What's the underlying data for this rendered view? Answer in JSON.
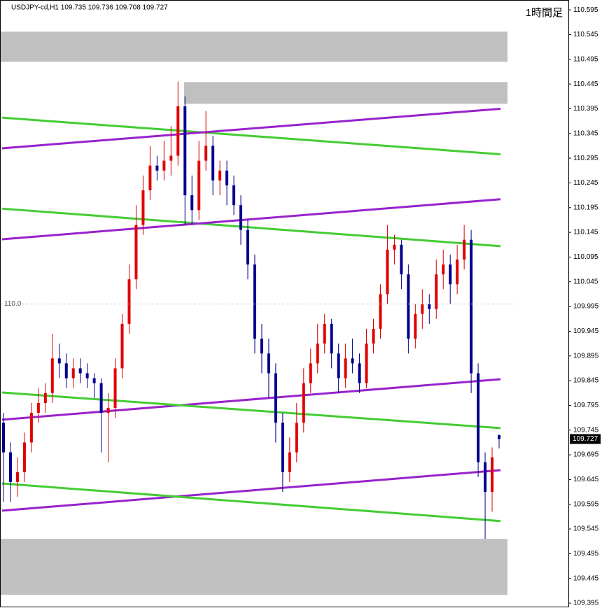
{
  "chart_data": {
    "type": "candlestick",
    "title": "USDJPY-cd,H1  109.735 109.736 109.708 109.727",
    "timeframe_label": "1時間足",
    "reference_level": {
      "value": 110.0,
      "label": "110.0"
    },
    "last_price": 109.727,
    "ylim": [
      109.388,
      110.615
    ],
    "yticks": [
      110.595,
      110.545,
      110.495,
      110.445,
      110.395,
      110.345,
      110.295,
      110.245,
      110.195,
      110.145,
      110.095,
      110.045,
      109.995,
      109.945,
      109.895,
      109.845,
      109.795,
      109.745,
      109.695,
      109.645,
      109.595,
      109.545,
      109.495,
      109.445,
      109.395
    ],
    "up_color": "#e00000",
    "down_color": "#00008c",
    "zone_color": "#c0c0c0",
    "zones": [
      {
        "from": 110.49,
        "to": 110.551
      },
      {
        "from": 110.405,
        "to": 110.449
      },
      {
        "from": 109.412,
        "to": 109.525
      }
    ],
    "trendlines": [
      {
        "color": "#44cc33",
        "start": 110.377,
        "end": 110.303
      },
      {
        "color": "#9922cc",
        "start": 110.315,
        "end": 110.395
      },
      {
        "color": "#44cc33",
        "start": 110.193,
        "end": 110.117
      },
      {
        "color": "#9922cc",
        "start": 110.131,
        "end": 110.212
      },
      {
        "color": "#9922cc",
        "start": 109.766,
        "end": 109.848
      },
      {
        "color": "#44cc33",
        "start": 109.821,
        "end": 109.749
      },
      {
        "color": "#9922cc",
        "start": 109.582,
        "end": 109.664
      },
      {
        "color": "#44cc33",
        "start": 109.637,
        "end": 109.561
      }
    ],
    "open": [
      109.76,
      109.7,
      109.64,
      109.66,
      109.72,
      109.78,
      109.8,
      109.82,
      109.89,
      109.88,
      109.85,
      109.87,
      109.86,
      109.85,
      109.84,
      109.78,
      109.79,
      109.87,
      109.96,
      110.05,
      110.16,
      110.23,
      110.28,
      110.27,
      110.29,
      110.3,
      110.4,
      110.22,
      110.19,
      110.29,
      110.32,
      110.25,
      110.27,
      110.24,
      110.2,
      110.15,
      110.08,
      109.93,
      109.9,
      109.86,
      109.76,
      109.66,
      109.7,
      109.76,
      109.84,
      109.88,
      109.92,
      109.96,
      109.9,
      109.85,
      109.89,
      109.88,
      109.84,
      109.92,
      109.95,
      110.02,
      110.11,
      110.12,
      110.06,
      109.93,
      109.98,
      110.0,
      109.99,
      110.06,
      110.08,
      110.04,
      110.09,
      110.13,
      109.86,
      109.68,
      109.62,
      109.735
    ],
    "high": [
      109.78,
      109.72,
      109.69,
      109.74,
      109.8,
      109.83,
      109.84,
      109.94,
      109.92,
      109.9,
      109.89,
      109.89,
      109.88,
      109.86,
      109.85,
      109.82,
      109.89,
      109.98,
      110.08,
      110.2,
      110.26,
      110.32,
      110.3,
      110.33,
      110.36,
      110.45,
      110.42,
      110.26,
      110.33,
      110.39,
      110.34,
      110.29,
      110.29,
      110.26,
      110.22,
      110.17,
      110.1,
      109.96,
      109.93,
      109.88,
      109.78,
      109.73,
      109.8,
      109.87,
      109.91,
      109.96,
      109.98,
      109.97,
      109.92,
      109.92,
      109.93,
      109.9,
      109.95,
      109.97,
      110.04,
      110.16,
      110.14,
      110.13,
      110.08,
      110.0,
      110.03,
      110.02,
      110.09,
      110.11,
      110.1,
      110.12,
      110.16,
      110.15,
      109.88,
      109.7,
      109.71,
      109.736
    ],
    "low": [
      109.6,
      109.6,
      109.61,
      109.64,
      109.7,
      109.76,
      109.78,
      109.8,
      109.85,
      109.83,
      109.83,
      109.84,
      109.83,
      109.81,
      109.7,
      109.68,
      109.77,
      109.85,
      109.94,
      110.03,
      110.14,
      110.21,
      110.25,
      110.25,
      110.26,
      110.28,
      110.16,
      110.16,
      110.17,
      110.27,
      110.22,
      110.22,
      110.2,
      110.18,
      110.12,
      110.05,
      109.9,
      109.86,
      109.81,
      109.72,
      109.62,
      109.64,
      109.68,
      109.74,
      109.82,
      109.86,
      109.9,
      109.87,
      109.82,
      109.83,
      109.86,
      109.82,
      109.83,
      109.9,
      109.93,
      110.0,
      110.08,
      110.03,
      109.9,
      109.91,
      109.95,
      109.96,
      109.97,
      110.03,
      110.0,
      110.02,
      110.07,
      109.82,
      109.65,
      109.525,
      109.58,
      109.708
    ],
    "close": [
      109.7,
      109.64,
      109.66,
      109.72,
      109.78,
      109.8,
      109.82,
      109.89,
      109.88,
      109.85,
      109.87,
      109.86,
      109.85,
      109.84,
      109.78,
      109.79,
      109.87,
      109.96,
      110.05,
      110.16,
      110.23,
      110.28,
      110.27,
      110.29,
      110.3,
      110.4,
      110.22,
      110.19,
      110.29,
      110.32,
      110.25,
      110.27,
      110.24,
      110.2,
      110.15,
      110.08,
      109.93,
      109.9,
      109.86,
      109.76,
      109.66,
      109.7,
      109.76,
      109.84,
      109.88,
      109.92,
      109.96,
      109.9,
      109.85,
      109.89,
      109.88,
      109.84,
      109.92,
      109.95,
      110.02,
      110.11,
      110.12,
      110.06,
      109.93,
      109.98,
      110.0,
      109.99,
      110.06,
      110.08,
      110.04,
      110.09,
      110.13,
      109.86,
      109.68,
      109.62,
      109.69,
      109.727
    ]
  }
}
